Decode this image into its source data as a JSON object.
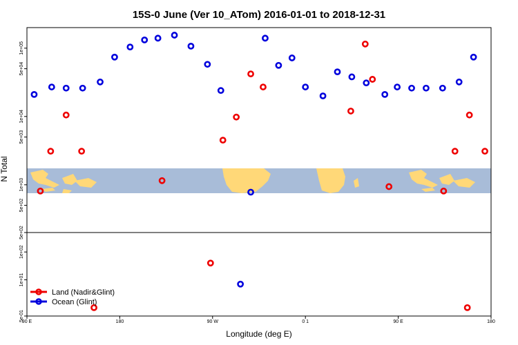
{
  "chart_data": {
    "type": "scatter",
    "title": "15S-0 June (Ver 10_ATom)   2016-01-01 to 2018-12-31",
    "xlabel": "Longitude (deg E)",
    "ylabel": "N Total",
    "x_ticks": [
      {
        "value": 90,
        "label": "90 E"
      },
      {
        "value": 180,
        "label": "180"
      },
      {
        "value": 270,
        "label": "90 W"
      },
      {
        "value": 360,
        "label": "0 1"
      },
      {
        "value": 450,
        "label": "90 E"
      },
      {
        "value": 540,
        "label": "180"
      }
    ],
    "xlim": [
      90,
      540
    ],
    "upper_panel": {
      "scale": "log",
      "ylim": [
        200,
        200000
      ],
      "y_ticks": [
        {
          "value": 500,
          "label": "5e+02"
        },
        {
          "value": 1000,
          "label": "1e+03"
        },
        {
          "value": 5000,
          "label": "5e+03"
        },
        {
          "value": 10000,
          "label": "1e+04"
        },
        {
          "value": 50000,
          "label": "5e+04"
        },
        {
          "value": 100000,
          "label": "1e+05"
        }
      ]
    },
    "lower_panel": {
      "scale": "log",
      "ylim": [
        0.5,
        500
      ],
      "y_ticks": [
        {
          "value": 0.5,
          "label": "5e-01"
        },
        {
          "value": 10,
          "label": "1e+01"
        },
        {
          "value": 100,
          "label": "1e+02"
        },
        {
          "value": 500,
          "label": "5e+02"
        }
      ]
    },
    "legend": {
      "position": "bottom-left",
      "entries": [
        "Land (Nadir&Glint)",
        "Ocean (Glint)"
      ]
    },
    "colors": {
      "land": "#ee0000",
      "ocean": "#0000dd",
      "map_water": "#a8bcd8",
      "map_land": "#ffd878"
    },
    "series": [
      {
        "name": "Land (Nadir&Glint)",
        "upper": [
          {
            "x": 103,
            "y": 810
          },
          {
            "x": 113,
            "y": 3100
          },
          {
            "x": 128,
            "y": 10500
          },
          {
            "x": 143,
            "y": 3100
          },
          {
            "x": 221,
            "y": 1150
          },
          {
            "x": 280,
            "y": 4500
          },
          {
            "x": 293,
            "y": 9800
          },
          {
            "x": 307,
            "y": 42000
          },
          {
            "x": 319,
            "y": 27000
          },
          {
            "x": 404,
            "y": 12000
          },
          {
            "x": 418,
            "y": 115000
          },
          {
            "x": 425,
            "y": 35000
          },
          {
            "x": 441,
            "y": 940
          },
          {
            "x": 494,
            "y": 810
          },
          {
            "x": 505,
            "y": 3100
          },
          {
            "x": 519,
            "y": 10500
          },
          {
            "x": 534,
            "y": 3100
          }
        ],
        "lower": [
          {
            "x": 155,
            "y": 1
          },
          {
            "x": 268,
            "y": 40
          },
          {
            "x": 517,
            "y": 1
          }
        ]
      },
      {
        "name": "Ocean (Glint)",
        "upper": [
          {
            "x": 97,
            "y": 21000
          },
          {
            "x": 114,
            "y": 27000
          },
          {
            "x": 128,
            "y": 26000
          },
          {
            "x": 144,
            "y": 26000
          },
          {
            "x": 161,
            "y": 32000
          },
          {
            "x": 175,
            "y": 74000
          },
          {
            "x": 190,
            "y": 104000
          },
          {
            "x": 204,
            "y": 132000
          },
          {
            "x": 217,
            "y": 140000
          },
          {
            "x": 233,
            "y": 155000
          },
          {
            "x": 249,
            "y": 107000
          },
          {
            "x": 265,
            "y": 58000
          },
          {
            "x": 278,
            "y": 24000
          },
          {
            "x": 307,
            "y": 780
          },
          {
            "x": 321,
            "y": 140000
          },
          {
            "x": 334,
            "y": 56000
          },
          {
            "x": 347,
            "y": 72000
          },
          {
            "x": 360,
            "y": 27000
          },
          {
            "x": 377,
            "y": 20000
          },
          {
            "x": 391,
            "y": 45000
          },
          {
            "x": 405,
            "y": 38000
          },
          {
            "x": 419,
            "y": 31000
          },
          {
            "x": 437,
            "y": 21000
          },
          {
            "x": 449,
            "y": 27000
          },
          {
            "x": 463,
            "y": 26000
          },
          {
            "x": 477,
            "y": 26000
          },
          {
            "x": 493,
            "y": 26000
          },
          {
            "x": 509,
            "y": 32000
          },
          {
            "x": 523,
            "y": 74000
          }
        ],
        "lower": [
          {
            "x": 297,
            "y": 7
          }
        ]
      }
    ]
  }
}
